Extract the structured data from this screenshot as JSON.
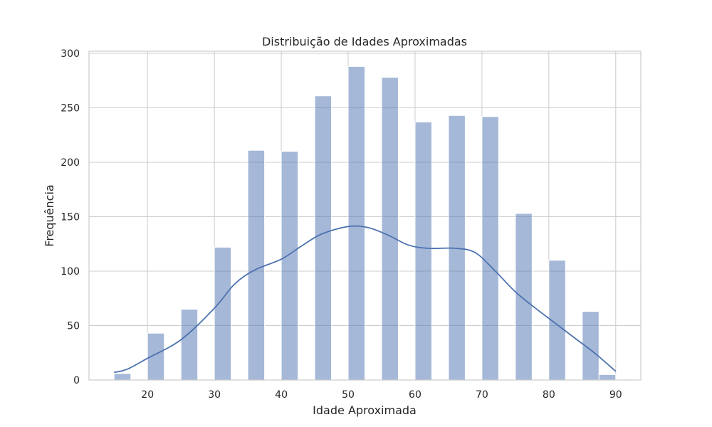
{
  "chart_data": {
    "type": "bar",
    "title": "Distribuição de Idades Aproximadas",
    "xlabel": "Idade Aproximada",
    "ylabel": "Frequência",
    "xlim": [
      11.25,
      93.75
    ],
    "ylim": [
      0,
      302
    ],
    "xticks": [
      20,
      30,
      40,
      50,
      60,
      70,
      80,
      90
    ],
    "yticks": [
      0,
      50,
      100,
      150,
      200,
      250,
      300
    ],
    "grid": true,
    "colors": {
      "bars": "#4c72b0",
      "kde": "#4c72b0",
      "grid": "#cccccc"
    },
    "bins": [
      {
        "x0": 15.0,
        "x1": 17.5,
        "count": 6
      },
      {
        "x0": 20.0,
        "x1": 22.5,
        "count": 43
      },
      {
        "x0": 25.0,
        "x1": 27.5,
        "count": 65
      },
      {
        "x0": 30.0,
        "x1": 32.5,
        "count": 122
      },
      {
        "x0": 35.0,
        "x1": 37.5,
        "count": 211
      },
      {
        "x0": 40.0,
        "x1": 42.5,
        "count": 210
      },
      {
        "x0": 45.0,
        "x1": 47.5,
        "count": 261
      },
      {
        "x0": 50.0,
        "x1": 52.5,
        "count": 288
      },
      {
        "x0": 55.0,
        "x1": 57.5,
        "count": 278
      },
      {
        "x0": 60.0,
        "x1": 62.5,
        "count": 237
      },
      {
        "x0": 65.0,
        "x1": 67.5,
        "count": 243
      },
      {
        "x0": 70.0,
        "x1": 72.5,
        "count": 242
      },
      {
        "x0": 75.0,
        "x1": 77.5,
        "count": 153
      },
      {
        "x0": 80.0,
        "x1": 82.5,
        "count": 110
      },
      {
        "x0": 85.0,
        "x1": 87.5,
        "count": 63
      },
      {
        "x0": 87.5,
        "x1": 90.0,
        "count": 5
      }
    ],
    "kde": {
      "x": [
        15,
        17,
        20,
        25,
        30,
        33,
        36,
        40,
        43,
        46,
        50,
        53,
        56,
        59,
        62,
        66,
        69,
        72,
        75,
        78,
        81,
        84,
        87,
        90
      ],
      "y": [
        7,
        10,
        20,
        37,
        66,
        88,
        101,
        111,
        123,
        134,
        141,
        140,
        133,
        124,
        121,
        121,
        117,
        100,
        81,
        66,
        52,
        38,
        24,
        8
      ]
    }
  }
}
